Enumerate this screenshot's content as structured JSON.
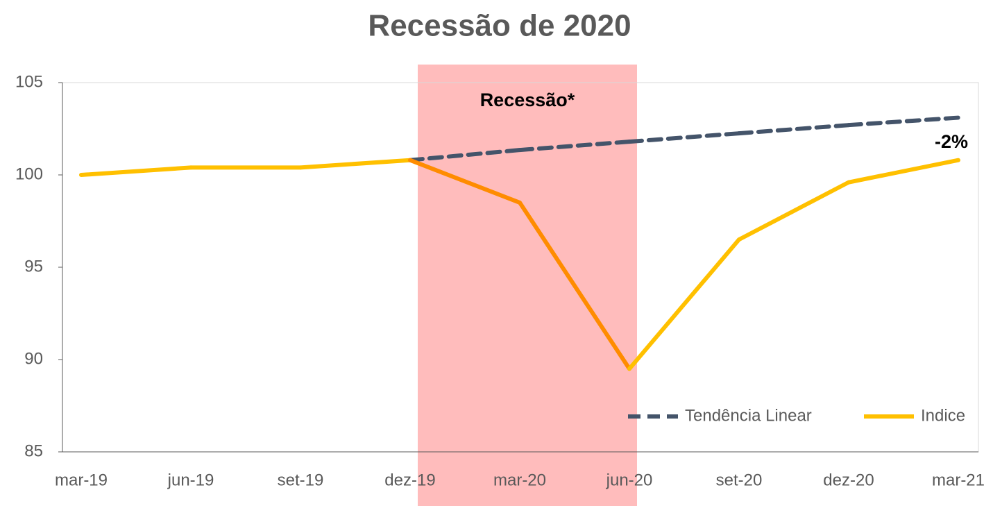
{
  "chart_data": {
    "type": "line",
    "title": "Recessão de 2020",
    "categories": [
      "mar-19",
      "jun-19",
      "set-19",
      "dez-19",
      "mar-20",
      "jun-20",
      "set-20",
      "dez-20",
      "mar-21"
    ],
    "series": [
      {
        "name": "Tendência Linear",
        "color": "#44546a",
        "dashed": true,
        "values": [
          null,
          null,
          null,
          100.8,
          101.35,
          101.8,
          102.25,
          102.7,
          103.1
        ]
      },
      {
        "name": "Indice",
        "color": "#ffc000",
        "highlight_color": "#ff8c00",
        "values": [
          100,
          100.4,
          100.4,
          100.8,
          98.5,
          89.5,
          96.5,
          99.6,
          100.8
        ]
      }
    ],
    "shade": {
      "label": "Recessão*",
      "from": "dez-19",
      "to": "jun-20",
      "color": "#ffbcbc"
    },
    "annotations": [
      {
        "text": "-2%",
        "category": "mar-21",
        "series": 1
      }
    ],
    "ylim": [
      85,
      105
    ],
    "yticks": [
      85,
      90,
      95,
      100,
      105
    ],
    "legend": "lower right"
  }
}
